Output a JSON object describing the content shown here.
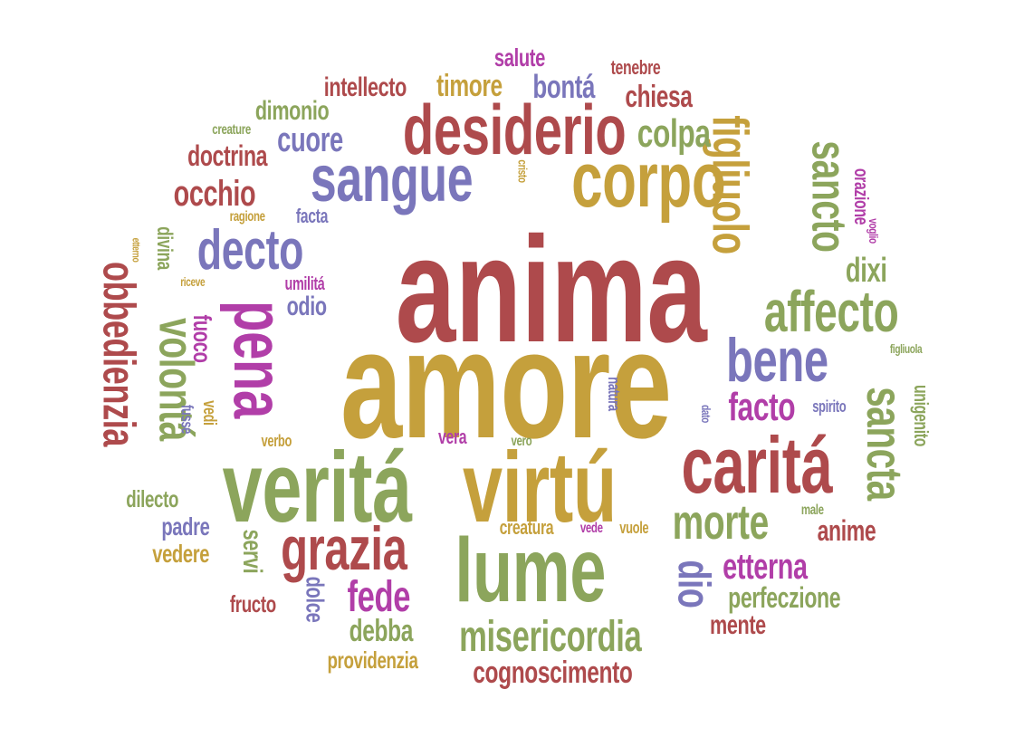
{
  "colors": {
    "red": "#ae4a4c",
    "gold": "#c5a03c",
    "green": "#8ca55c",
    "blue": "#7a76bb",
    "magenta": "#b13ea8"
  },
  "words": [
    {
      "text": "anima",
      "color": "red"
    },
    {
      "text": "amore",
      "color": "gold"
    },
    {
      "text": "virtú",
      "color": "gold"
    },
    {
      "text": "veritá",
      "color": "green"
    },
    {
      "text": "lume",
      "color": "green"
    },
    {
      "text": "caritá",
      "color": "red"
    },
    {
      "text": "desiderio",
      "color": "red"
    },
    {
      "text": "corpo",
      "color": "gold"
    },
    {
      "text": "sangue",
      "color": "blue"
    },
    {
      "text": "pena",
      "color": "magenta"
    },
    {
      "text": "grazia",
      "color": "red"
    },
    {
      "text": "affecto",
      "color": "green"
    },
    {
      "text": "bene",
      "color": "blue"
    },
    {
      "text": "morte",
      "color": "green"
    },
    {
      "text": "misericordia",
      "color": "green"
    },
    {
      "text": "decto",
      "color": "blue"
    },
    {
      "text": "figliuolo",
      "color": "gold"
    },
    {
      "text": "sancto",
      "color": "green"
    },
    {
      "text": "sancta",
      "color": "green"
    },
    {
      "text": "obbedienzia",
      "color": "red"
    },
    {
      "text": "volontá",
      "color": "green"
    },
    {
      "text": "fede",
      "color": "magenta"
    },
    {
      "text": "cognoscimento",
      "color": "red"
    },
    {
      "text": "etterna",
      "color": "magenta"
    },
    {
      "text": "perfeczione",
      "color": "green"
    },
    {
      "text": "dio",
      "color": "blue"
    },
    {
      "text": "facto",
      "color": "magenta"
    },
    {
      "text": "colpa",
      "color": "green"
    },
    {
      "text": "cuore",
      "color": "blue"
    },
    {
      "text": "occhio",
      "color": "red"
    },
    {
      "text": "chiesa",
      "color": "red"
    },
    {
      "text": "timore",
      "color": "gold"
    },
    {
      "text": "bontá",
      "color": "blue"
    },
    {
      "text": "intellecto",
      "color": "red"
    },
    {
      "text": "dimonio",
      "color": "green"
    },
    {
      "text": "doctrina",
      "color": "red"
    },
    {
      "text": "dixi",
      "color": "green"
    },
    {
      "text": "anime",
      "color": "red"
    },
    {
      "text": "debba",
      "color": "green"
    },
    {
      "text": "mente",
      "color": "red"
    },
    {
      "text": "providenzia",
      "color": "gold"
    },
    {
      "text": "dolce",
      "color": "blue"
    },
    {
      "text": "fructo",
      "color": "red"
    },
    {
      "text": "servi",
      "color": "green"
    },
    {
      "text": "vedere",
      "color": "gold"
    },
    {
      "text": "padre",
      "color": "blue"
    },
    {
      "text": "dilecto",
      "color": "green"
    },
    {
      "text": "fuoco",
      "color": "magenta"
    },
    {
      "text": "odio",
      "color": "blue"
    },
    {
      "text": "salute",
      "color": "magenta"
    },
    {
      "text": "tenebre",
      "color": "red"
    },
    {
      "text": "unigenito",
      "color": "green"
    },
    {
      "text": "orazione",
      "color": "magenta"
    },
    {
      "text": "creatura",
      "color": "gold"
    },
    {
      "text": "facta",
      "color": "blue"
    },
    {
      "text": "umilitá",
      "color": "magenta"
    },
    {
      "text": "divina",
      "color": "green"
    },
    {
      "text": "ragione",
      "color": "gold"
    },
    {
      "text": "creature",
      "color": "green"
    },
    {
      "text": "vedi",
      "color": "gold"
    },
    {
      "text": "fusse",
      "color": "blue"
    },
    {
      "text": "verbo",
      "color": "gold"
    },
    {
      "text": "vera",
      "color": "magenta"
    },
    {
      "text": "vero",
      "color": "green"
    },
    {
      "text": "vede",
      "color": "magenta"
    },
    {
      "text": "vuole",
      "color": "gold"
    },
    {
      "text": "natura",
      "color": "blue"
    },
    {
      "text": "dato",
      "color": "blue"
    },
    {
      "text": "spirito",
      "color": "blue"
    },
    {
      "text": "male",
      "color": "green"
    },
    {
      "text": "figliuola",
      "color": "green"
    },
    {
      "text": "voglio",
      "color": "magenta"
    },
    {
      "text": "riceve",
      "color": "gold"
    },
    {
      "text": "etterno",
      "color": "gold"
    },
    {
      "text": "cristo",
      "color": "gold"
    }
  ]
}
